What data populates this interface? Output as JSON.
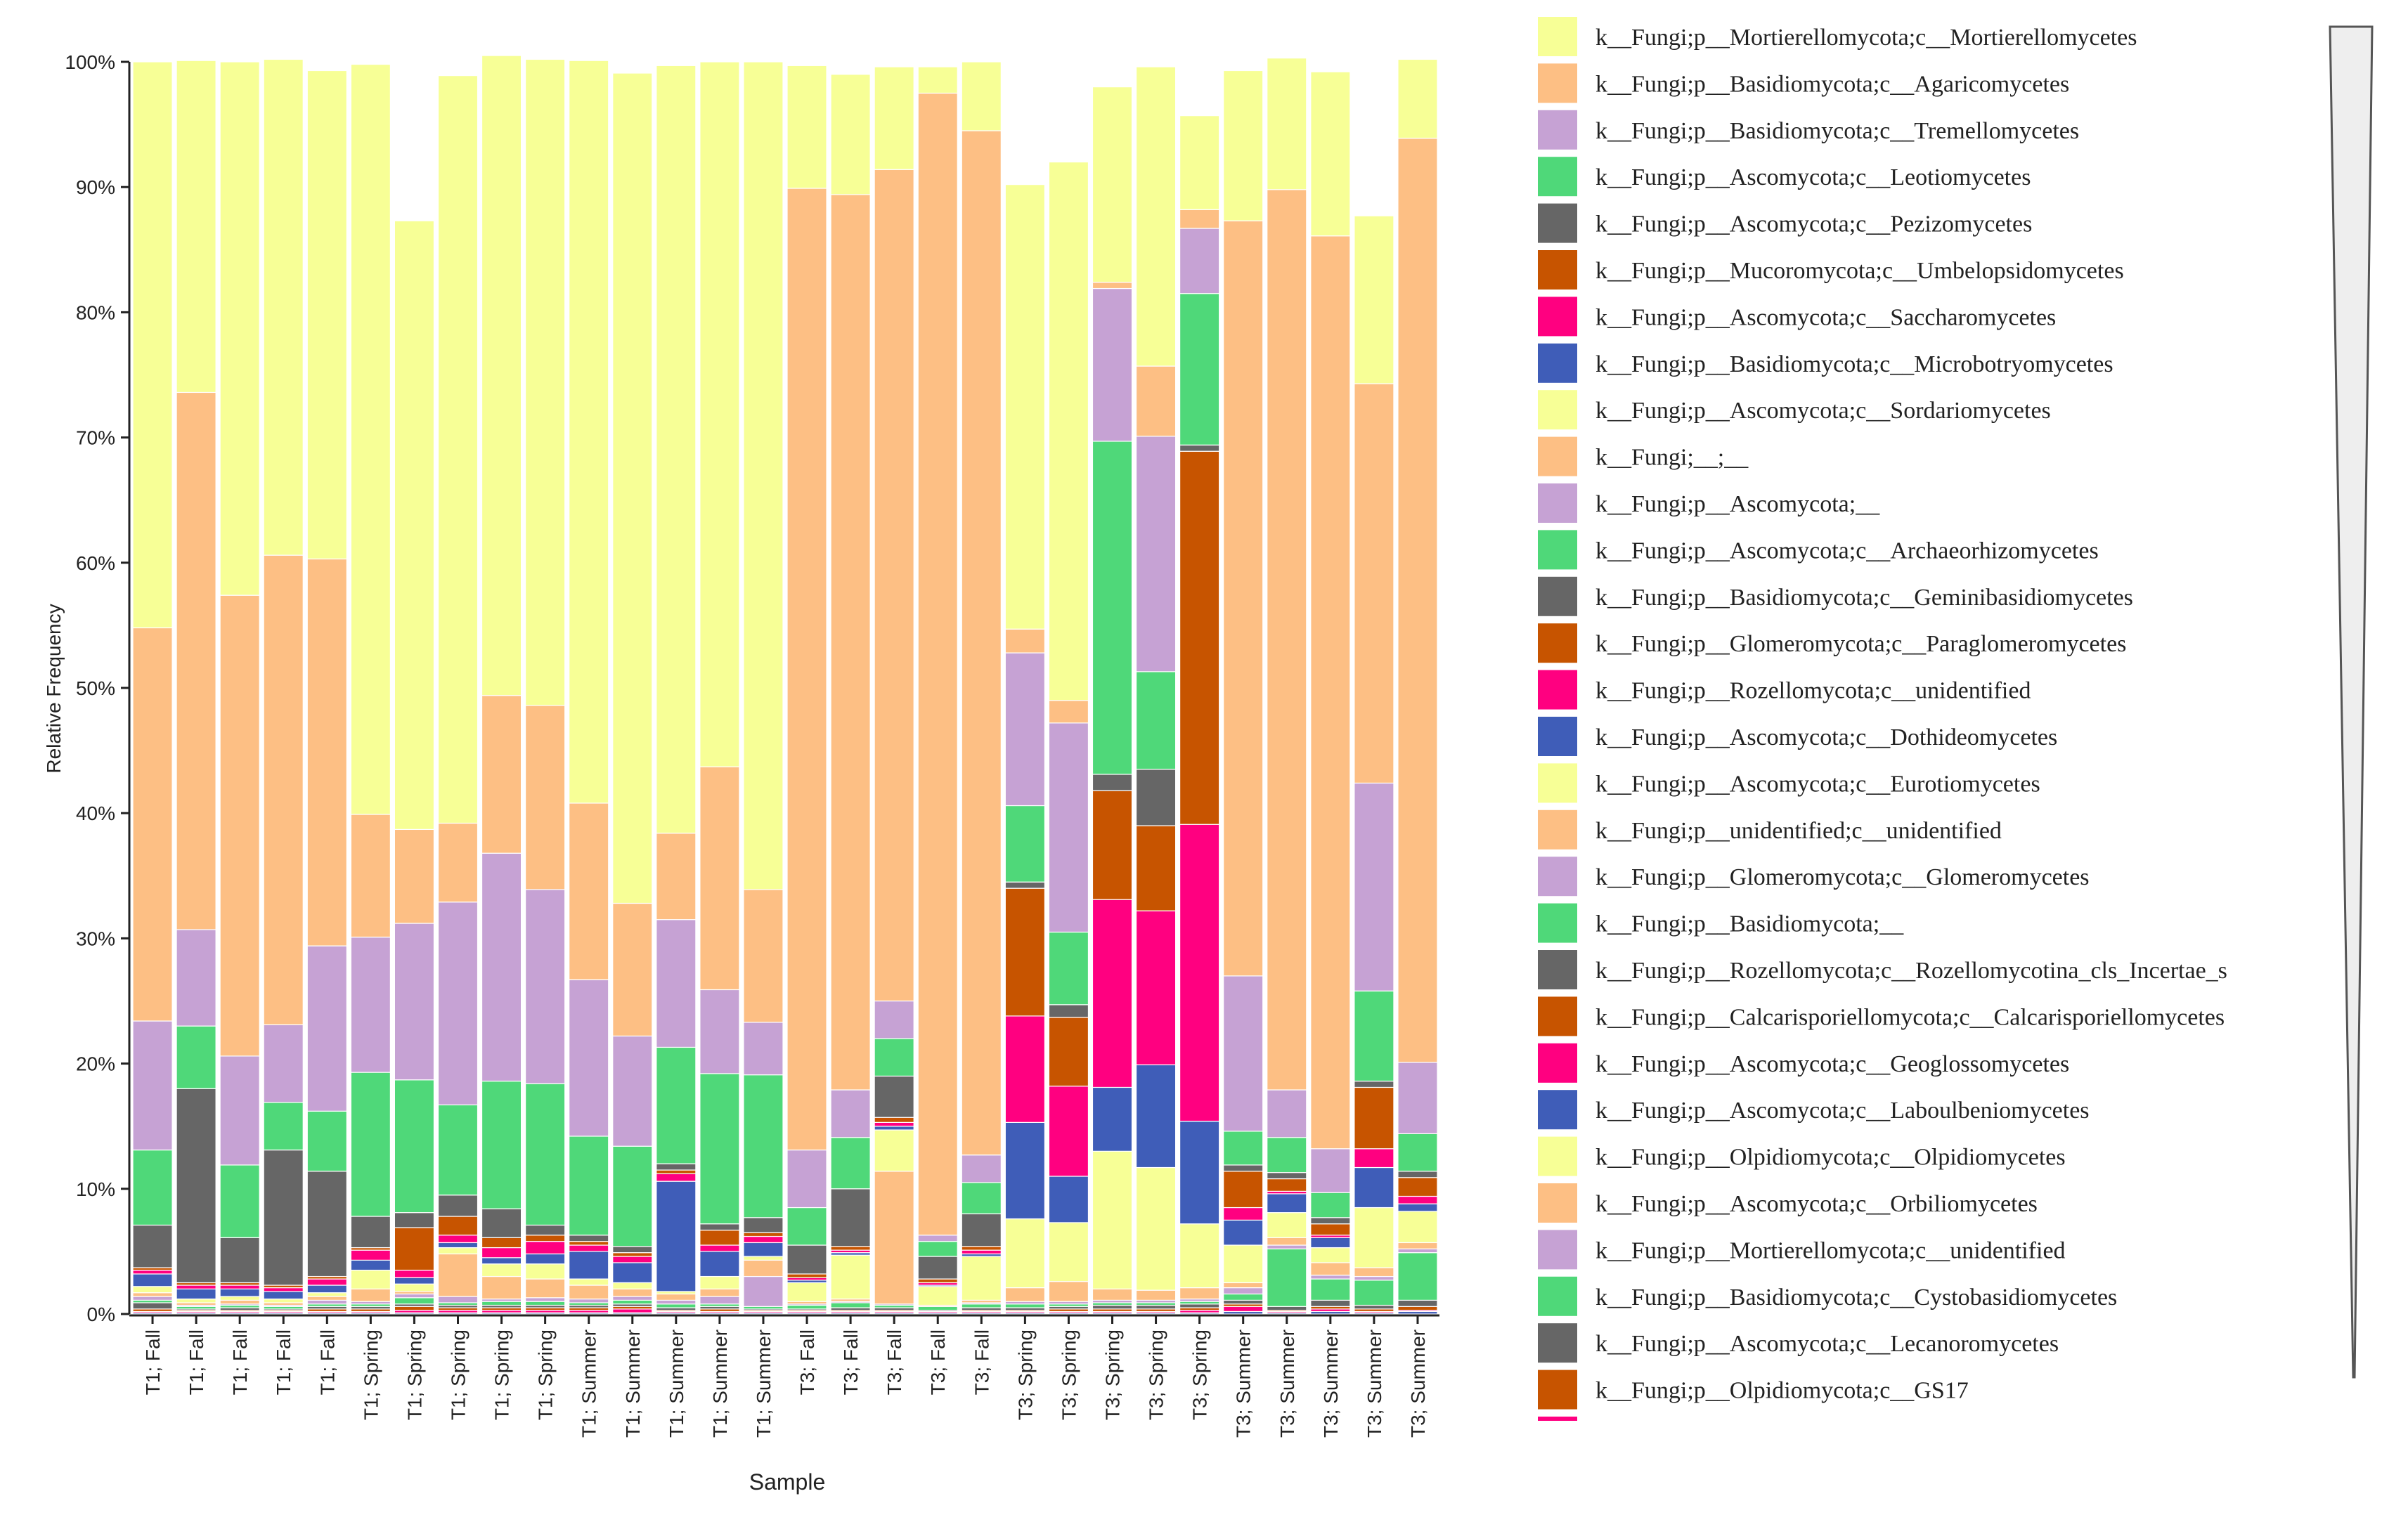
{
  "chart_data": {
    "type": "bar",
    "stacked": true,
    "normalized": true,
    "xlabel": "Sample",
    "ylabel": "Relative Frequency",
    "ylim": [
      0,
      100
    ],
    "yticks": [
      "0%",
      "10%",
      "20%",
      "30%",
      "40%",
      "50%",
      "60%",
      "70%",
      "80%",
      "90%",
      "100%"
    ],
    "categories": [
      "T1; Fall",
      "T1; Fall",
      "T1; Fall",
      "T1; Fall",
      "T1; Fall",
      "T1; Spring",
      "T1; Spring",
      "T1; Spring",
      "T1; Spring",
      "T1; Spring",
      "T1; Summer",
      "T1; Summer",
      "T1; Summer",
      "T1; Summer",
      "T1; Summer",
      "T3; Fall",
      "T3; Fall",
      "T3; Fall",
      "T3; Fall",
      "T3; Fall",
      "T3; Spring",
      "T3; Spring",
      "T3; Spring",
      "T3; Spring",
      "T3; Spring",
      "T3; Summer",
      "T3; Summer",
      "T3; Summer",
      "T3; Summer",
      "T3; Summer"
    ],
    "series": [
      {
        "name": "k__Fungi;p__Mortierellomycota;c__Mortierellomycetes",
        "color": "#f7ff96",
        "values": [
          45.2,
          26.5,
          42.6,
          39.6,
          39,
          59.9,
          48.6,
          59.7,
          51.1,
          51.6,
          59.3,
          66.3,
          61.3,
          56.3,
          66.1,
          9.8,
          9.6,
          8.2,
          2.1,
          5.5,
          35.5,
          43,
          15.6,
          23.9,
          7.5,
          12,
          10.5,
          13.1,
          13.4,
          6.3
        ]
      },
      {
        "name": "k__Fungi;p__Basidiomycota;c__Agaricomycetes",
        "color": "#fdbf84",
        "values": [
          31.4,
          42.9,
          36.8,
          37.5,
          30.9,
          9.8,
          7.5,
          6.3,
          12.6,
          14.7,
          14.1,
          10.6,
          6.9,
          17.8,
          10.6,
          76.8,
          71.5,
          66.4,
          91.2,
          81.8,
          1.9,
          1.8,
          0.5,
          5.6,
          1.5,
          60.3,
          71.9,
          72.9,
          31.9,
          73.8
        ]
      },
      {
        "name": "k__Fungi;p__Basidiomycota;c__Tremellomycetes",
        "color": "#c6a2d4",
        "values": [
          10.3,
          7.7,
          8.7,
          6.2,
          13.2,
          10.8,
          12.5,
          16.2,
          18.2,
          15.5,
          12.5,
          8.8,
          10.2,
          6.7,
          4.2,
          4.6,
          3.8,
          3,
          0.5,
          2.2,
          12.2,
          16.7,
          12.2,
          18.8,
          5.2,
          12.4,
          3.8,
          3.5,
          16.6,
          5.7
        ]
      },
      {
        "name": "k__Fungi;p__Ascomycota;c__Leotiomycetes",
        "color": "#4fd879",
        "values": [
          6,
          5,
          5.8,
          3.8,
          4.8,
          11.5,
          10.6,
          7.2,
          10.2,
          11.3,
          7.9,
          8,
          9.3,
          12,
          11.4,
          3,
          4.1,
          3,
          1.2,
          2.5,
          6.1,
          5.8,
          26.6,
          7.8,
          12.1,
          2.7,
          2.8,
          2,
          7.2,
          3
        ]
      },
      {
        "name": "k__Fungi;p__Ascomycota;c__Pezizomycetes",
        "color": "#666666",
        "values": [
          3.4,
          15.5,
          3.6,
          10.8,
          8.4,
          2.5,
          1.2,
          1.7,
          2.3,
          0.8,
          0.5,
          0.5,
          0.5,
          0.5,
          1.2,
          2.3,
          4.6,
          3.3,
          1.8,
          2.6,
          0.5,
          1,
          1.3,
          4.5,
          0.5,
          0.5,
          0.5,
          0.5,
          0.5,
          0.5
        ]
      },
      {
        "name": "k__Fungi;p__Mucoromycota;c__Umbelopsidomycetes",
        "color": "#c75400",
        "values": [
          0.2,
          0.2,
          0.2,
          0.2,
          0.2,
          0.2,
          3.4,
          1.5,
          0.8,
          0.5,
          0.3,
          0.3,
          0.3,
          1.2,
          0.3,
          0.3,
          0.3,
          0.4,
          0.3,
          0.3,
          10.2,
          5.5,
          8.7,
          6.8,
          29.8,
          2.9,
          1,
          0.9,
          4.9,
          1.5
        ]
      },
      {
        "name": "k__Fungi;p__Ascomycota;c__Saccharomycetes",
        "color": "#ff0080",
        "values": [
          0.3,
          0.3,
          0.3,
          0.3,
          0.5,
          0.8,
          0.6,
          0.6,
          0.8,
          1,
          0.5,
          0.5,
          0.6,
          0.5,
          0.5,
          0.2,
          0.2,
          0.3,
          0.2,
          0.3,
          8.5,
          7.2,
          15,
          12.3,
          23.7,
          1,
          0.2,
          0.2,
          1.5,
          0.6
        ]
      },
      {
        "name": "k__Fungi;p__Basidiomycota;c__Microbotryomycetes",
        "color": "#3f5db8",
        "values": [
          1,
          0.8,
          0.6,
          0.6,
          0.6,
          0.8,
          0.5,
          0.4,
          0.5,
          0.8,
          2.2,
          1.6,
          8.8,
          2,
          1.1,
          0.2,
          0.2,
          0.3,
          0.1,
          0.2,
          7.7,
          3.7,
          5.1,
          8.2,
          8.2,
          2,
          1.5,
          0.8,
          3.2,
          0.6
        ]
      },
      {
        "name": "k__Fungi;p__Ascomycota;c__Sordariomycetes",
        "color": "#f7ff96",
        "values": [
          0.5,
          0.3,
          0.3,
          0.3,
          0.3,
          1.5,
          0.6,
          0.5,
          1,
          1.2,
          0.5,
          0.5,
          0.2,
          1,
          0.3,
          1.5,
          3.5,
          3.3,
          1.5,
          3.5,
          5.5,
          4.7,
          11,
          9.8,
          5.1,
          3,
          2,
          1.2,
          4.8,
          2.5
        ]
      },
      {
        "name": "k__Fungi;__;__",
        "color": "#fdbf84",
        "values": [
          0.3,
          0.2,
          0.3,
          0.2,
          0.3,
          1,
          0.2,
          3.4,
          1.8,
          1.5,
          1.1,
          0.6,
          0.5,
          0.6,
          1.3,
          0.2,
          0.2,
          10.6,
          0.1,
          0.2,
          1.1,
          1.6,
          0.9,
          0.8,
          0.9,
          0.4,
          0.6,
          1,
          0.7,
          0.5
        ]
      },
      {
        "name": "k__Fungi;p__Ascomycota;__",
        "color": "#c6a2d4",
        "values": [
          0.3,
          0.1,
          0.1,
          0.1,
          0.3,
          0.2,
          0.3,
          0.5,
          0.2,
          0.3,
          0.3,
          0.3,
          0.3,
          0.6,
          2.4,
          0.1,
          0.1,
          0.1,
          0,
          0.1,
          0.2,
          0.2,
          0.2,
          0.2,
          0.2,
          0.5,
          0.3,
          0.3,
          0.3,
          0.3
        ]
      },
      {
        "name": "k__Fungi;p__Ascomycota;c__Archaeorhizomycetes",
        "color": "#4fd879",
        "values": [
          0.2,
          0.2,
          0.2,
          0.2,
          0.2,
          0.2,
          0.5,
          0.2,
          0.3,
          0.3,
          0.2,
          0.3,
          0.3,
          0.2,
          0.2,
          0.3,
          0.4,
          0.2,
          0.3,
          0.3,
          0.3,
          0.2,
          0.2,
          0.2,
          0.2,
          0.5,
          4.6,
          1.7,
          2,
          3.8
        ]
      },
      {
        "name": "k__Fungi;p__Basidiomycota;c__Geminibasidiomycetes",
        "color": "#666666",
        "values": [
          0.5,
          0.1,
          0.2,
          0.1,
          0.2,
          0.2,
          0.2,
          0.2,
          0.2,
          0.2,
          0.2,
          0.2,
          0.2,
          0.2,
          0.1,
          0.1,
          0.2,
          0.2,
          0.1,
          0.2,
          0.2,
          0.2,
          0.3,
          0.3,
          0.3,
          0.3,
          0.3,
          0.5,
          0.3,
          0.5
        ]
      },
      {
        "name": "k__Fungi;p__Glomeromycota;c__Paraglomeromycetes",
        "color": "#c75400",
        "values": [
          0.2,
          0.1,
          0.1,
          0.1,
          0.2,
          0.2,
          0.3,
          0.2,
          0.2,
          0.2,
          0.2,
          0.2,
          0.1,
          0.2,
          0.1,
          0.1,
          0.1,
          0.1,
          0,
          0.1,
          0.1,
          0.2,
          0.2,
          0.2,
          0.2,
          0.2,
          0.1,
          0.2,
          0.2,
          0.3
        ]
      },
      {
        "name": "k__Fungi;p__Rozellomycota;c__unidentified",
        "color": "#ff0080",
        "values": [
          0.1,
          0.1,
          0.1,
          0.1,
          0.1,
          0.1,
          0.2,
          0.2,
          0.2,
          0.2,
          0.2,
          0.3,
          0.1,
          0.1,
          0.1,
          0.1,
          0.1,
          0.1,
          0.1,
          0.1,
          0.1,
          0.1,
          0.1,
          0.1,
          0.2,
          0.4,
          0.1,
          0.2,
          0.1,
          0.1
        ]
      },
      {
        "name": "k__Fungi;p__Ascomycota;c__Dothideomycetes",
        "color": "#3f5db8",
        "values": [
          0.1,
          0.1,
          0.1,
          0.1,
          0.1,
          0.1,
          0.1,
          0.1,
          0.1,
          0.1,
          0.1,
          0.1,
          0.1,
          0.1,
          0.1,
          0.1,
          0.1,
          0.1,
          0.1,
          0.1,
          0.1,
          0.1,
          0.1,
          0.1,
          0.1,
          0.2,
          0.1,
          0.2,
          0.1,
          0.2
        ]
      }
    ],
    "legend": {
      "placement": "right",
      "entries": [
        {
          "label": "k__Fungi;p__Mortierellomycota;c__Mortierellomycetes",
          "color": "#f7ff96"
        },
        {
          "label": "k__Fungi;p__Basidiomycota;c__Agaricomycetes",
          "color": "#fdbf84"
        },
        {
          "label": "k__Fungi;p__Basidiomycota;c__Tremellomycetes",
          "color": "#c6a2d4"
        },
        {
          "label": "k__Fungi;p__Ascomycota;c__Leotiomycetes",
          "color": "#4fd879"
        },
        {
          "label": "k__Fungi;p__Ascomycota;c__Pezizomycetes",
          "color": "#666666"
        },
        {
          "label": "k__Fungi;p__Mucoromycota;c__Umbelopsidomycetes",
          "color": "#c75400"
        },
        {
          "label": "k__Fungi;p__Ascomycota;c__Saccharomycetes",
          "color": "#ff0080"
        },
        {
          "label": "k__Fungi;p__Basidiomycota;c__Microbotryomycetes",
          "color": "#3f5db8"
        },
        {
          "label": "k__Fungi;p__Ascomycota;c__Sordariomycetes",
          "color": "#f7ff96"
        },
        {
          "label": "k__Fungi;__;__",
          "color": "#fdbf84"
        },
        {
          "label": "k__Fungi;p__Ascomycota;__",
          "color": "#c6a2d4"
        },
        {
          "label": "k__Fungi;p__Ascomycota;c__Archaeorhizomycetes",
          "color": "#4fd879"
        },
        {
          "label": "k__Fungi;p__Basidiomycota;c__Geminibasidiomycetes",
          "color": "#666666"
        },
        {
          "label": "k__Fungi;p__Glomeromycota;c__Paraglomeromycetes",
          "color": "#c75400"
        },
        {
          "label": "k__Fungi;p__Rozellomycota;c__unidentified",
          "color": "#ff0080"
        },
        {
          "label": "k__Fungi;p__Ascomycota;c__Dothideomycetes",
          "color": "#3f5db8"
        },
        {
          "label": "k__Fungi;p__Ascomycota;c__Eurotiomycetes",
          "color": "#f7ff96"
        },
        {
          "label": "k__Fungi;p__unidentified;c__unidentified",
          "color": "#fdbf84"
        },
        {
          "label": "k__Fungi;p__Glomeromycota;c__Glomeromycetes",
          "color": "#c6a2d4"
        },
        {
          "label": "k__Fungi;p__Basidiomycota;__",
          "color": "#4fd879"
        },
        {
          "label": "k__Fungi;p__Rozellomycota;c__Rozellomycotina_cls_Incertae_s",
          "color": "#666666"
        },
        {
          "label": "k__Fungi;p__Calcarisporiellomycota;c__Calcarisporiellomycetes",
          "color": "#c75400"
        },
        {
          "label": "k__Fungi;p__Ascomycota;c__Geoglossomycetes",
          "color": "#ff0080"
        },
        {
          "label": "k__Fungi;p__Ascomycota;c__Laboulbeniomycetes",
          "color": "#3f5db8"
        },
        {
          "label": "k__Fungi;p__Olpidiomycota;c__Olpidiomycetes",
          "color": "#f7ff96"
        },
        {
          "label": "k__Fungi;p__Ascomycota;c__Orbiliomycetes",
          "color": "#fdbf84"
        },
        {
          "label": "k__Fungi;p__Mortierellomycota;c__unidentified",
          "color": "#c6a2d4"
        },
        {
          "label": "k__Fungi;p__Basidiomycota;c__Cystobasidiomycetes",
          "color": "#4fd879"
        },
        {
          "label": "k__Fungi;p__Ascomycota;c__Lecanoromycetes",
          "color": "#666666"
        },
        {
          "label": "k__Fungi;p__Olpidiomycota;c__GS17",
          "color": "#c75400"
        }
      ],
      "overflow_swatch_color": "#ff0080"
    }
  }
}
